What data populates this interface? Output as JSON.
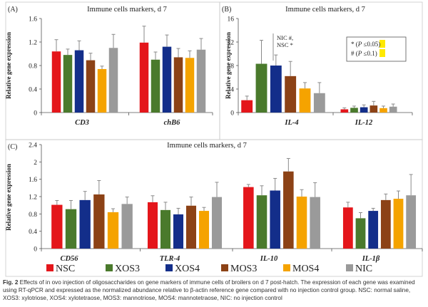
{
  "colors": {
    "NSC": "#e4161b",
    "XOS3": "#4a7a2c",
    "XOS4": "#132e8a",
    "MOS3": "#8c4216",
    "MOS4": "#f5a300",
    "NIC": "#9a9a9a",
    "error": "#8a8a8a",
    "highlight": "#ffe900"
  },
  "chart_data": [
    {
      "panel": "(A)",
      "type": "bar",
      "title": "Immune cells markers, d 7",
      "ylabel": "Relative gene expression",
      "ylim": [
        0,
        1.6
      ],
      "yticks": [
        "0",
        "0.4",
        "0.8",
        "1.2",
        "1.6"
      ],
      "categories": [
        "CD3",
        "chB6"
      ],
      "series": [
        {
          "name": "NSC",
          "values": [
            1.04,
            1.19
          ],
          "errors": [
            0.2,
            0.28
          ]
        },
        {
          "name": "XOS3",
          "values": [
            0.98,
            0.9
          ],
          "errors": [
            0.1,
            0.13
          ]
        },
        {
          "name": "XOS4",
          "values": [
            1.06,
            1.12
          ],
          "errors": [
            0.16,
            0.2
          ]
        },
        {
          "name": "MOS3",
          "values": [
            0.89,
            0.94
          ],
          "errors": [
            0.12,
            0.15
          ]
        },
        {
          "name": "MOS4",
          "values": [
            0.74,
            0.93
          ],
          "errors": [
            0.05,
            0.12
          ]
        },
        {
          "name": "NIC",
          "values": [
            1.1,
            1.07
          ],
          "errors": [
            0.23,
            0.19
          ]
        }
      ]
    },
    {
      "panel": "(B)",
      "type": "bar",
      "title": "Immune cells markers, d 7",
      "ylabel": "Relative gene expression",
      "ylim": [
        0,
        16
      ],
      "yticks": [
        "0",
        "4",
        "8",
        "12",
        "16"
      ],
      "categories": [
        "IL-4",
        "IL-12"
      ],
      "series": [
        {
          "name": "NSC",
          "values": [
            2.1,
            0.55
          ],
          "errors": [
            0.7,
            0.25
          ]
        },
        {
          "name": "XOS3",
          "values": [
            8.3,
            0.8
          ],
          "errors": [
            4.0,
            0.3
          ]
        },
        {
          "name": "XOS4",
          "values": [
            8.0,
            0.9
          ],
          "errors": [
            1.8,
            0.4
          ]
        },
        {
          "name": "MOS3",
          "values": [
            6.2,
            1.2
          ],
          "errors": [
            2.5,
            0.7
          ]
        },
        {
          "name": "MOS4",
          "values": [
            4.1,
            0.75
          ],
          "errors": [
            1.0,
            0.35
          ]
        },
        {
          "name": "NIC",
          "values": [
            3.3,
            1.0
          ],
          "errors": [
            1.8,
            0.45
          ]
        }
      ],
      "annotation": "NIC #, NSC *",
      "annotation_lines": [
        "NIC #,",
        "NSC *"
      ],
      "significance_legend": [
        {
          "symbol": "*",
          "open": "(",
          "italic": "P",
          "sign": "≤",
          "rest": "0.05)"
        },
        {
          "symbol": "#",
          "open": "(",
          "italic": "P",
          "sign": "≤",
          "rest": "0.1)"
        }
      ]
    },
    {
      "panel": "(C)",
      "type": "bar",
      "title": "Immune cells markers, d 7",
      "ylabel": "Relative gene expression",
      "ylim": [
        0,
        2.4
      ],
      "yticks": [
        "0",
        "0.4",
        "0.8",
        "1.2",
        "1.6",
        "2",
        "2.4"
      ],
      "categories": [
        "CD56",
        "TLR-4",
        "IL-10",
        "IL-1β"
      ],
      "series": [
        {
          "name": "NSC",
          "values": [
            1.01,
            1.07,
            1.42,
            0.95
          ],
          "errors": [
            0.1,
            0.15,
            0.06,
            0.12
          ]
        },
        {
          "name": "XOS3",
          "values": [
            0.91,
            0.89,
            1.23,
            0.7
          ],
          "errors": [
            0.2,
            0.18,
            0.22,
            0.13
          ]
        },
        {
          "name": "XOS4",
          "values": [
            1.12,
            0.79,
            1.34,
            0.87
          ],
          "errors": [
            0.2,
            0.14,
            0.28,
            0.06
          ]
        },
        {
          "name": "MOS3",
          "values": [
            1.25,
            0.99,
            1.78,
            1.12
          ],
          "errors": [
            0.32,
            0.2,
            0.3,
            0.14
          ]
        },
        {
          "name": "MOS4",
          "values": [
            0.84,
            0.87,
            1.2,
            1.15
          ],
          "errors": [
            0.08,
            0.08,
            0.16,
            0.18
          ]
        },
        {
          "name": "NIC",
          "values": [
            1.03,
            1.19,
            1.19,
            1.23
          ],
          "errors": [
            0.16,
            0.34,
            0.33,
            0.48
          ]
        }
      ]
    }
  ],
  "legend": [
    "NSC",
    "XOS3",
    "XOS4",
    "MOS3",
    "MOS4",
    "NIC"
  ],
  "caption": {
    "label": "Fig. 2",
    "text": " Effects of in ovo injection of oligosaccharides on gene markers of immune cells of broilers on d 7 post-hatch. The expression of each gene was examined using RT-qPCR and expressed as the normalized abundance relative to β-actin reference gene compared with no injection control group. NSC: normal saline, XOS3: xylotriose, XOS4: xylotetraose, MOS3: mannotriose, MOS4: mannotetraose, NIC: no injection control"
  }
}
